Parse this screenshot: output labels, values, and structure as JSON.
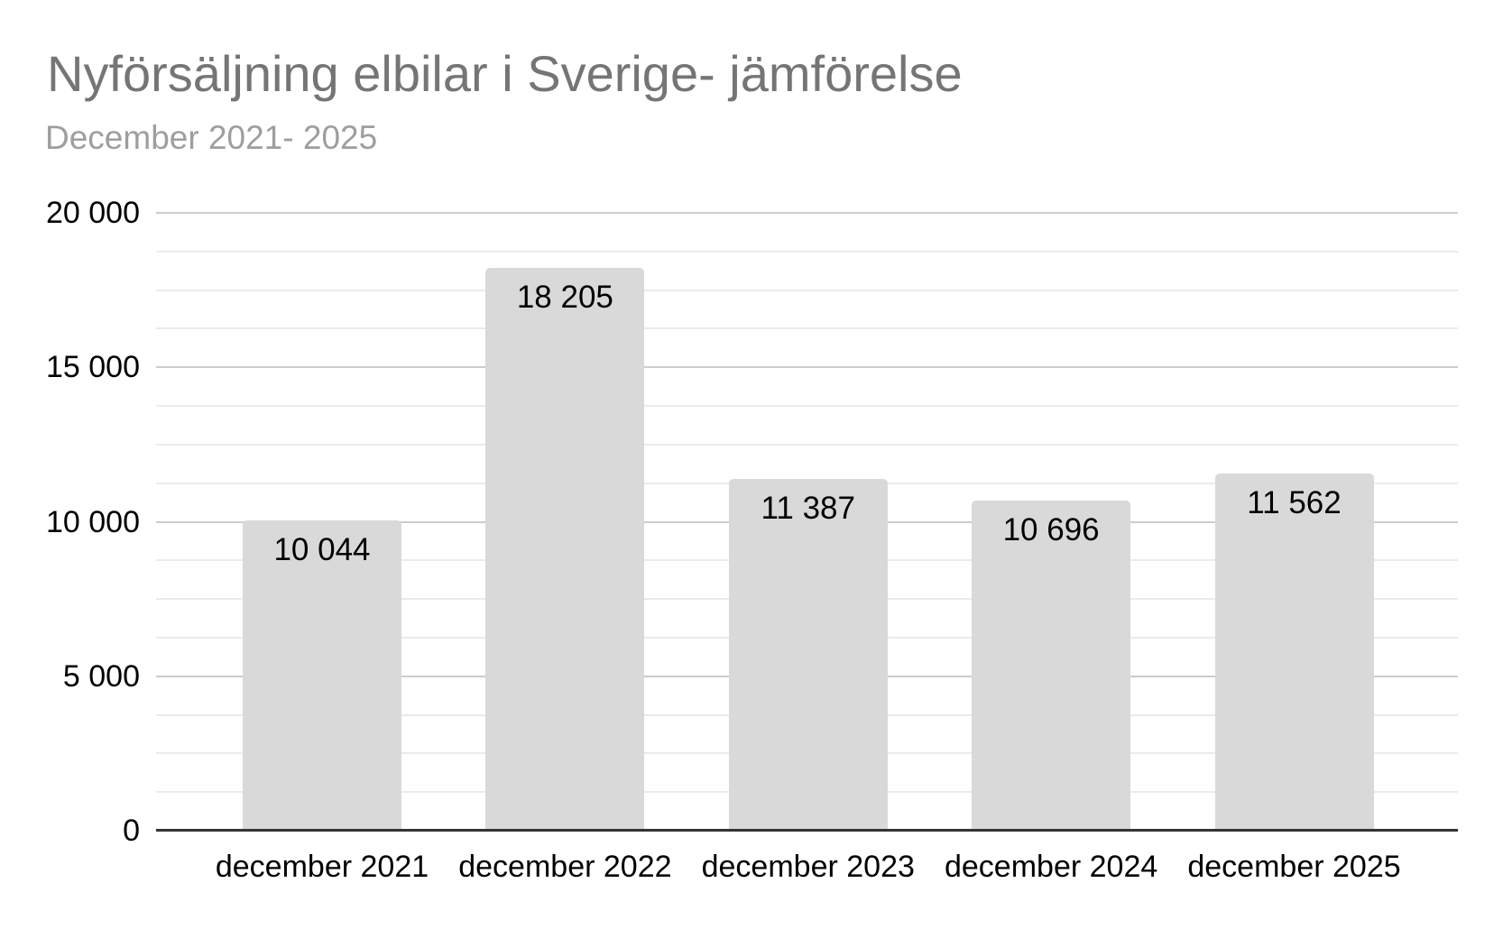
{
  "chart_data": {
    "type": "bar",
    "title": "Nyförsäljning elbilar i Sverige- jämförelse",
    "subtitle": "December 2021- 2025",
    "categories": [
      "december 2021",
      "december 2022",
      "december 2023",
      "december 2024",
      "december 2025"
    ],
    "values": [
      10044,
      18205,
      11387,
      10696,
      11562
    ],
    "value_labels": [
      "10 044",
      "18 205",
      "11 387",
      "10 696",
      "11 562"
    ],
    "xlabel": "",
    "ylabel": "",
    "ylim": [
      0,
      20000
    ],
    "y_major_ticks": [
      0,
      5000,
      10000,
      15000,
      20000
    ],
    "y_tick_labels": [
      "0",
      "5 000",
      "10 000",
      "15 000",
      "20 000"
    ],
    "y_minor_tick_step": 1250,
    "grid": true,
    "legend_position": "none",
    "colors": {
      "bar_fill": "#d9d9d9",
      "title_text": "#757575",
      "subtitle_text": "#9e9e9e",
      "axis_label_text": "#000000",
      "data_label_text": "#000000",
      "gridline_major": "#cccccc",
      "gridline_minor": "#ebebeb",
      "axis_line": "#333333",
      "background": "#ffffff"
    }
  }
}
